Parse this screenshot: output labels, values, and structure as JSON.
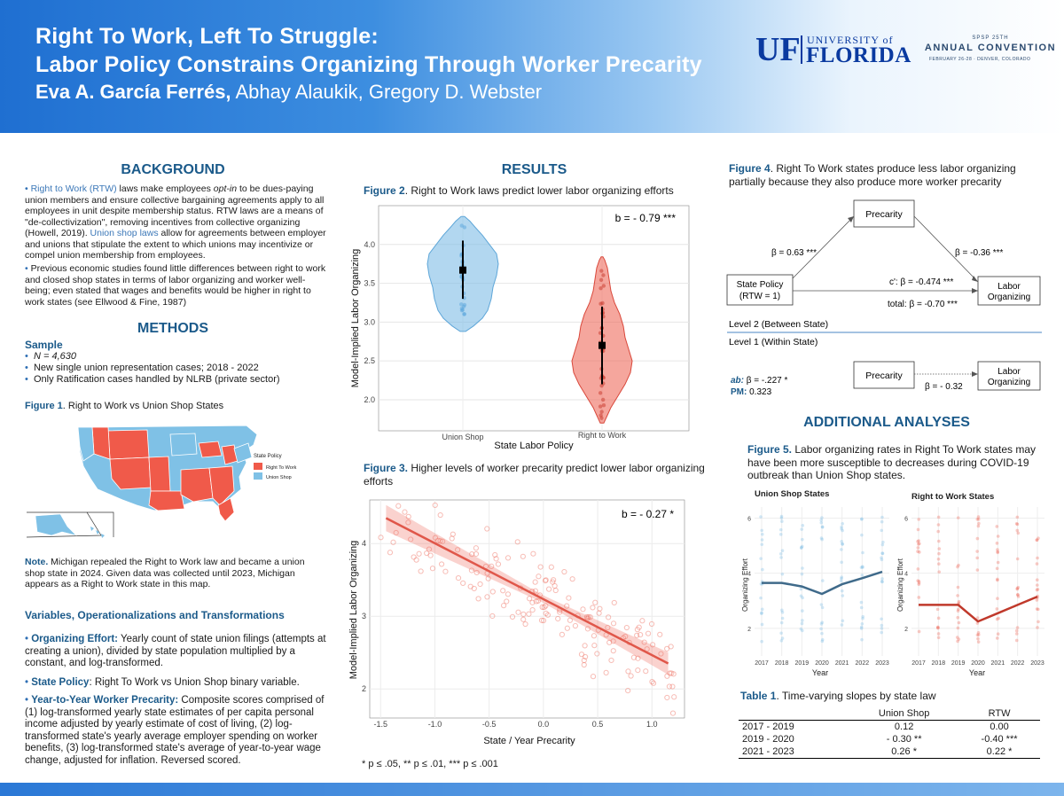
{
  "header": {
    "title_line1": "Right To Work, Left To Struggle:",
    "title_line2": "Labor Policy Constrains Organizing Through Worker Precarity",
    "first_author": "Eva A. García Ferrés,",
    "other_authors": " Abhay Alaukik, Gregory D. Webster",
    "uf_logo": {
      "mark": "UF",
      "university": "UNIVERSITY of",
      "state": "FLORIDA"
    },
    "spsp_logo": {
      "line1": "SPSP 25TH",
      "line2": "ANNUAL CONVENTION",
      "line3": "FEBRUARY 26-28 · DENVER, COLORADO"
    }
  },
  "background": {
    "heading": "BACKGROUND",
    "p1_term": "Right to Work (RTW)",
    "p1_a": " laws make employees ",
    "p1_optin": "opt-in",
    "p1_b": " to be dues-paying union members and ensure collective bargaining agreements apply to all employees in unit despite membership status. RTW laws are a means of \"de-collectivization\",  removing incentives from collective organizing (Howell, 2019). ",
    "p1_term2": "Union shop laws",
    "p1_c": " allow for agreements between employer and unions that stipulate the extent to which unions may incentivize or compel union membership from employees.",
    "p2": "Previous economic studies found little differences between right to work and closed shop states in terms of labor organizing and worker well-being; even stated that wages and benefits would be higher in right to work states (see Ellwood & Fine, 1987)"
  },
  "methods": {
    "heading": "METHODS",
    "sample_heading": "Sample",
    "sample_items": [
      "N = 4,630",
      "New single union representation cases; 2018 - 2022",
      "Only Ratification cases handled by NLRB (private sector)"
    ],
    "fig1_label": "Figure 1",
    "fig1_caption": ". Right to Work vs Union Shop States",
    "map_legend": {
      "title": "State Policy",
      "items": [
        {
          "label": "Right To Work",
          "color": "#f05a4a"
        },
        {
          "label": "Union Shop",
          "color": "#7fc1e6"
        }
      ]
    },
    "note_label": "Note.",
    "note_text": " Michigan repealed the Right to Work law and became a union shop state in 2024. Given data was collected until 2023, Michigan appears as a Right to Work state in this map.",
    "vars_heading": "Variables, Operationalizations and Transformations",
    "var1_term": "Organizing Effort:",
    "var1_text": "  Yearly count of state union filings (attempts at creating a union), divided by state population multiplied by a constant, and log-transformed.",
    "var2_term": "State Policy",
    "var2_text": ": Right To Work vs  Union Shop binary variable.",
    "var3_term": "Year-to-Year Worker Precarity:",
    "var3_text": " Composite scores comprised of (1) log-transformed yearly state estimates of per capita personal income adjusted by yearly estimate of cost of living, (2) log-transformed state's yearly average employer spending on worker benefits, (3) log-transformed state's average of year-to-year wage change, adjusted for inflation. Reversed scored."
  },
  "results": {
    "heading": "RESULTS",
    "fig2_label": "Figure 2",
    "fig2_caption": ". Right to Work laws predict lower labor organizing efforts",
    "fig3_label": "Figure 3.",
    "fig3_caption": " Higher levels of worker precarity predict lower labor organizing efforts",
    "pvalues": "* p ≤ .05, ** p ≤ .01, *** p ≤ .001"
  },
  "figure4": {
    "label": "Figure 4",
    "caption": ". Right To Work states produce less labor organizing partially because they also produce more worker precarity",
    "precarity": "Precarity",
    "state_policy_l1": "State Policy",
    "state_policy_l2": "(RTW = 1)",
    "labor_l1": "Labor",
    "labor_l2": "Organizing",
    "path_a": "β = 0.63 ***",
    "path_b": "β = -0.36 ***",
    "path_c_prime": "c': β = -0.474 ***",
    "path_total": "total: β = -0.70 ***",
    "level2": "Level 2 (Between State)",
    "level1": "Level 1 (Within State)",
    "ab_label": "ab:",
    "ab_value": " β = -.227 *",
    "pm_label": "PM:",
    "pm_value": " 0.323",
    "within_beta": "β = - 0.32"
  },
  "additional": {
    "heading": "ADDITIONAL ANALYSES",
    "fig5_label": "Figure 5.",
    "fig5_caption": "  Labor organizing rates in Right To Work states may have been more susceptible to decreases during COVID-19 outbreak than Union Shop states.",
    "table_label": "Table 1",
    "table_caption": ". Time-varying slopes by state law",
    "table": {
      "headers": [
        "",
        "Union Shop",
        "RTW"
      ],
      "rows": [
        [
          "2017 - 2019",
          "0.12",
          "0.00"
        ],
        [
          "2019 - 2020",
          "- 0.30 **",
          "-0.40 ***"
        ],
        [
          "2021 - 2023",
          "0.26 *",
          "0.22 *"
        ]
      ]
    }
  },
  "chart_data": [
    {
      "id": "figure2",
      "type": "violin",
      "categories": [
        "Union Shop",
        "Right to Work"
      ],
      "xlabel": "State Labor Policy",
      "ylabel": "Model-Implied Labor Organizing",
      "ylim": [
        1.6,
        4.5
      ],
      "yticks": [
        "2.0",
        "2.5",
        "3.0",
        "3.5",
        "4.0"
      ],
      "means": [
        3.67,
        2.7
      ],
      "annotation": "b = - 0.79 ***",
      "colors": [
        "#7fbde6",
        "#ef6a5c"
      ]
    },
    {
      "id": "figure3",
      "type": "scatter",
      "xlabel": "State / Year Precarity",
      "ylabel": "Model-Implied Labor Organizing",
      "xlim": [
        -1.6,
        1.3
      ],
      "ylim": [
        1.6,
        4.6
      ],
      "xticks": [
        "-1.5",
        "-1.0",
        "-0.5",
        "0.0",
        "0.5",
        "1.0"
      ],
      "yticks": [
        "2",
        "3",
        "4"
      ],
      "fit_line": {
        "x": [
          -1.45,
          1.15
        ],
        "y": [
          4.35,
          2.35
        ]
      },
      "annotation": "b = - 0.27 *",
      "color": "#ee6a5c"
    },
    {
      "id": "figure5-union",
      "type": "line",
      "title": "Union Shop States",
      "xlabel": "Year",
      "ylabel": "Organizing Effort",
      "x": [
        "2017",
        "2018",
        "2019",
        "2020",
        "2021",
        "2022",
        "2023"
      ],
      "values": [
        3.65,
        3.65,
        3.52,
        3.25,
        3.6,
        3.82,
        4.05
      ],
      "yticks": [
        "2",
        "4",
        "6"
      ],
      "ylim": [
        1.0,
        6.4
      ],
      "color": "#3f6a8a"
    },
    {
      "id": "figure5-rtw",
      "type": "line",
      "title": "Right to Work States",
      "xlabel": "Year",
      "ylabel": "Organizing Effort",
      "x": [
        "2017",
        "2018",
        "2019",
        "2020",
        "2021",
        "2022",
        "2023"
      ],
      "values": [
        2.85,
        2.85,
        2.85,
        2.25,
        2.55,
        2.85,
        3.15
      ],
      "yticks": [
        "2",
        "4",
        "6"
      ],
      "ylim": [
        1.0,
        6.4
      ],
      "color": "#c0392b"
    }
  ]
}
